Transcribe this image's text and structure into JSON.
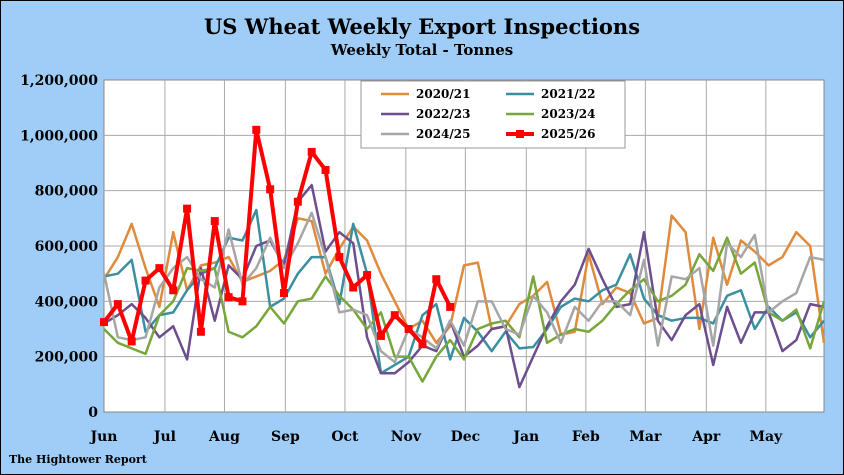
{
  "chart_data": {
    "type": "line",
    "title": "US Wheat Weekly Export Inspections",
    "subtitle": "Weekly Total - Tonnes",
    "source": "The Hightower Report",
    "ylim": [
      0,
      1200000
    ],
    "y_ticks": [
      0,
      200000,
      400000,
      600000,
      800000,
      1000000,
      1200000
    ],
    "y_tick_labels": [
      "0",
      "200,000",
      "400,000",
      "600,000",
      "800,000",
      "1,000,000",
      "1,200,000"
    ],
    "x_week_range": [
      0,
      52
    ],
    "x_ticks": [
      {
        "label": "Jun",
        "week": 0
      },
      {
        "label": "Jul",
        "week": 4.4
      },
      {
        "label": "Aug",
        "week": 8.7
      },
      {
        "label": "Sep",
        "week": 13.1
      },
      {
        "label": "Oct",
        "week": 17.4
      },
      {
        "label": "Nov",
        "week": 21.8
      },
      {
        "label": "Dec",
        "week": 26.1
      },
      {
        "label": "Jan",
        "week": 30.5
      },
      {
        "label": "Feb",
        "week": 34.8
      },
      {
        "label": "Mar",
        "week": 39.1
      },
      {
        "label": "Apr",
        "week": 43.5
      },
      {
        "label": "May",
        "week": 47.8
      }
    ],
    "grid": true,
    "legend_position": "top-center",
    "series": [
      {
        "name": "2020/21",
        "color": "#e08a3c",
        "values": [
          480000,
          560000,
          680000,
          520000,
          380000,
          650000,
          440000,
          530000,
          540000,
          560000,
          470000,
          490000,
          510000,
          550000,
          700000,
          690000,
          500000,
          590000,
          670000,
          620000,
          500000,
          400000,
          300000,
          330000,
          250000,
          310000,
          530000,
          540000,
          300000,
          310000,
          390000,
          420000,
          470000,
          280000,
          290000,
          570000,
          390000,
          450000,
          430000,
          320000,
          340000,
          710000,
          650000,
          300000,
          630000,
          460000,
          620000,
          580000,
          530000,
          560000,
          650000,
          600000,
          250000
        ]
      },
      {
        "name": "2021/22",
        "color": "#3b8fa0",
        "values": [
          490000,
          500000,
          550000,
          290000,
          350000,
          360000,
          440000,
          500000,
          520000,
          630000,
          620000,
          730000,
          380000,
          410000,
          500000,
          560000,
          560000,
          390000,
          680000,
          500000,
          140000,
          170000,
          200000,
          350000,
          390000,
          190000,
          340000,
          290000,
          220000,
          290000,
          230000,
          235000,
          300000,
          380000,
          410000,
          400000,
          440000,
          460000,
          570000,
          410000,
          350000,
          330000,
          340000,
          340000,
          320000,
          420000,
          440000,
          300000,
          380000,
          330000,
          360000,
          270000,
          330000
        ]
      },
      {
        "name": "2022/23",
        "color": "#6d4e8f",
        "values": [
          320000,
          350000,
          390000,
          340000,
          270000,
          310000,
          190000,
          520000,
          330000,
          530000,
          480000,
          600000,
          620000,
          530000,
          760000,
          820000,
          580000,
          650000,
          610000,
          270000,
          140000,
          140000,
          180000,
          240000,
          220000,
          330000,
          200000,
          240000,
          300000,
          310000,
          90000,
          200000,
          310000,
          400000,
          460000,
          590000,
          480000,
          380000,
          390000,
          650000,
          330000,
          260000,
          350000,
          390000,
          170000,
          380000,
          250000,
          360000,
          360000,
          220000,
          260000,
          390000,
          380000
        ]
      },
      {
        "name": "2023/24",
        "color": "#77a63a",
        "values": [
          300000,
          250000,
          230000,
          210000,
          350000,
          400000,
          520000,
          510000,
          520000,
          290000,
          270000,
          310000,
          380000,
          320000,
          400000,
          410000,
          490000,
          420000,
          370000,
          300000,
          360000,
          200000,
          200000,
          110000,
          200000,
          260000,
          190000,
          300000,
          320000,
          330000,
          270000,
          490000,
          250000,
          280000,
          300000,
          290000,
          330000,
          390000,
          440000,
          480000,
          400000,
          420000,
          460000,
          570000,
          510000,
          630000,
          500000,
          540000,
          360000,
          330000,
          370000,
          230000,
          400000
        ]
      },
      {
        "name": "2024/25",
        "color": "#a6a6a6",
        "values": [
          500000,
          270000,
          260000,
          270000,
          450000,
          520000,
          560000,
          480000,
          450000,
          660000,
          460000,
          520000,
          630000,
          520000,
          610000,
          720000,
          560000,
          360000,
          370000,
          350000,
          220000,
          180000,
          300000,
          270000,
          230000,
          330000,
          240000,
          400000,
          400000,
          300000,
          280000,
          420000,
          360000,
          250000,
          380000,
          330000,
          400000,
          400000,
          350000,
          550000,
          240000,
          490000,
          480000,
          520000,
          240000,
          610000,
          560000,
          640000,
          360000,
          400000,
          430000,
          560000,
          550000
        ]
      },
      {
        "name": "2025/26",
        "color": "#ff0000",
        "values": [
          325000,
          390000,
          255000,
          475000,
          520000,
          440000,
          735000,
          290000,
          690000,
          415000,
          400000,
          1020000,
          805000,
          430000,
          760000,
          940000,
          875000,
          560000,
          450000,
          495000,
          275000,
          350000,
          300000,
          245000,
          480000,
          380000
        ]
      }
    ]
  }
}
